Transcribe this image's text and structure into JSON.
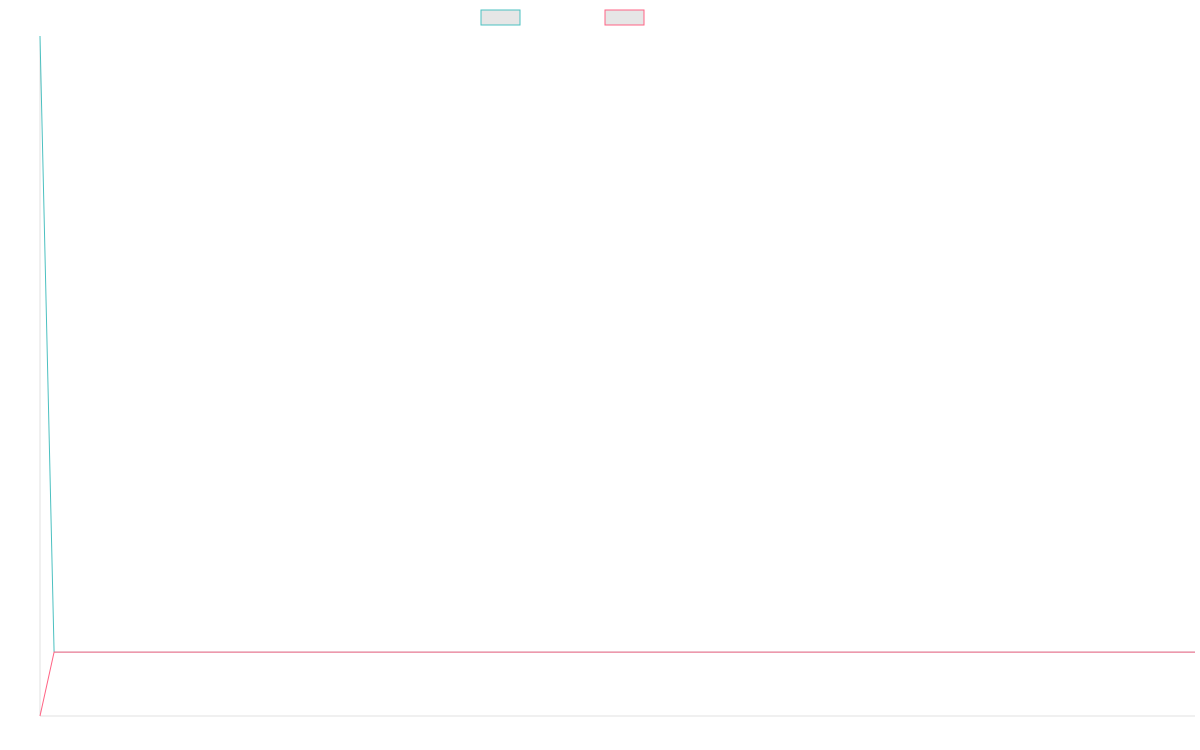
{
  "chart_data": {
    "type": "line",
    "x": [
      0,
      1,
      82
    ],
    "series": [
      {
        "color": "#4bc0c0",
        "values": [
          100,
          9.4,
          9.4
        ]
      },
      {
        "color": "#ff6384",
        "values": [
          0,
          9.4,
          9.4
        ]
      }
    ],
    "xlim": [
      0,
      82
    ],
    "ylim": [
      0,
      100
    ],
    "legend": "top"
  }
}
